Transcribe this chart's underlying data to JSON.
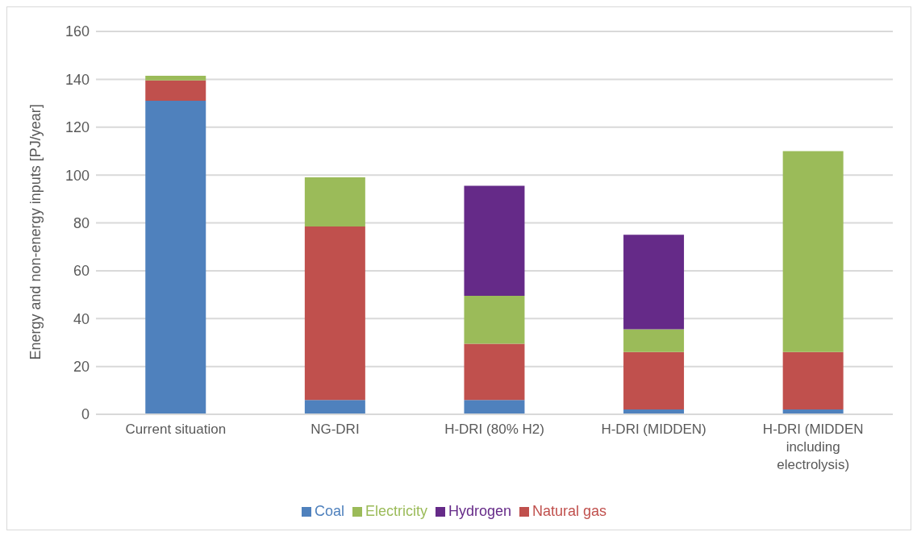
{
  "chart_data": {
    "type": "bar",
    "stacked": true,
    "ylabel": "Energy and non-energy inputs [PJ/year]",
    "categories": [
      "Current situation",
      "NG-DRI",
      "H-DRI (80% H2)",
      "H-DRI (MIDDEN)",
      "H-DRI (MIDDEN including electrolysis)"
    ],
    "series": [
      {
        "name": "Coal",
        "color": "#4f81bd",
        "values": [
          131,
          6,
          6,
          2,
          2
        ]
      },
      {
        "name": "Natural gas",
        "color": "#c0504d",
        "values": [
          8.5,
          72.5,
          23.5,
          24,
          24
        ]
      },
      {
        "name": "Electricity",
        "color": "#9bbb59",
        "values": [
          2,
          20.5,
          20,
          9.5,
          84
        ]
      },
      {
        "name": "Hydrogen",
        "color": "#652a88",
        "values": [
          0,
          0,
          46,
          39.5,
          0
        ]
      }
    ],
    "ylim": [
      0,
      160
    ],
    "yticks": [
      0,
      20,
      40,
      60,
      80,
      100,
      120,
      140,
      160
    ],
    "grid": "y",
    "legend": "bottom"
  }
}
